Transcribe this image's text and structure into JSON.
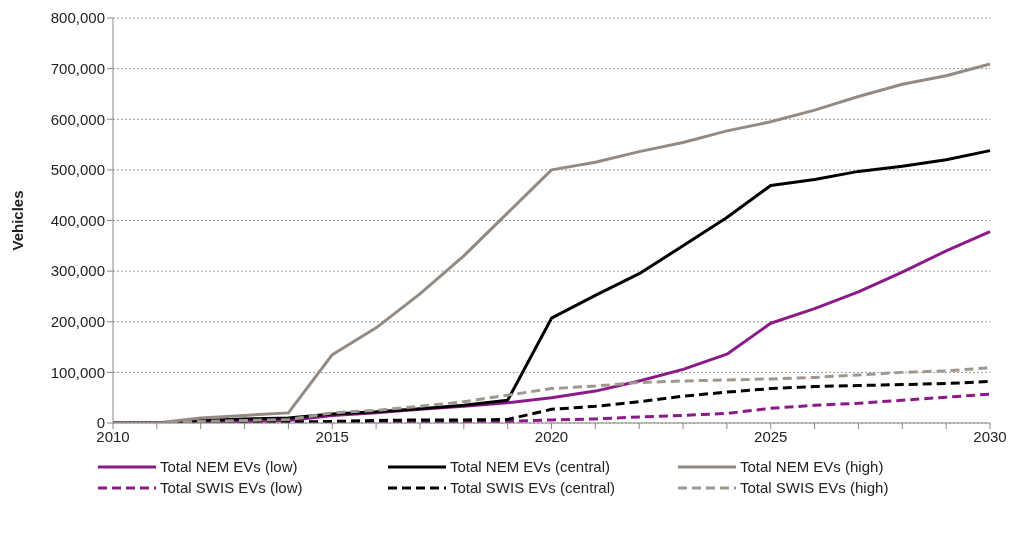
{
  "chart_data": {
    "type": "line",
    "ylabel": "Vehicles",
    "categories": [
      "2010",
      null,
      null,
      null,
      null,
      "2015",
      null,
      null,
      null,
      null,
      "2020",
      null,
      null,
      null,
      null,
      "2025",
      null,
      null,
      null,
      null,
      "2030"
    ],
    "series": [
      {
        "name": "Total NEM EVs (low)",
        "color": "#8b1a89",
        "line_style": "solid",
        "values": [
          0,
          0,
          2000,
          3000,
          5000,
          15000,
          20000,
          27000,
          33000,
          40000,
          50000,
          63000,
          83000,
          106000,
          136000,
          197000,
          226000,
          259000,
          298000,
          340000,
          378000
        ]
      },
      {
        "name": "Total NEM EVs (central)",
        "color": "#000000",
        "line_style": "solid",
        "values": [
          0,
          0,
          5000,
          8000,
          10000,
          18000,
          22000,
          28000,
          35000,
          45000,
          207000,
          252000,
          295000,
          350000,
          406000,
          469000,
          481000,
          497000,
          507000,
          520000,
          538000
        ]
      },
      {
        "name": "Total NEM EVs (high)",
        "color": "#948a84",
        "line_style": "solid",
        "values": [
          0,
          0,
          10000,
          15000,
          20000,
          135000,
          188000,
          255000,
          330000,
          415000,
          500000,
          515000,
          536000,
          554000,
          577000,
          595000,
          618000,
          645000,
          669000,
          686000,
          709000
        ]
      },
      {
        "name": "Total SWIS EVs (low)",
        "color": "#8b1a89",
        "line_style": "dashed",
        "values": [
          0,
          0,
          0,
          1000,
          1000,
          2000,
          2000,
          2000,
          3000,
          3000,
          6000,
          8000,
          12000,
          15000,
          19000,
          29000,
          35000,
          39000,
          45000,
          51000,
          57000
        ]
      },
      {
        "name": "Total SWIS EVs (central)",
        "color": "#000000",
        "line_style": "dashed",
        "values": [
          0,
          0,
          1000,
          2000,
          2000,
          3000,
          5000,
          6000,
          6000,
          7000,
          27000,
          33000,
          42000,
          53000,
          61000,
          68000,
          72000,
          74000,
          76000,
          78000,
          82000
        ]
      },
      {
        "name": "Total SWIS EVs (high)",
        "color": "#a0988f",
        "line_style": "dashed",
        "values": [
          0,
          0,
          3000,
          5000,
          7000,
          20000,
          25000,
          33000,
          42000,
          55000,
          68000,
          73000,
          80000,
          83000,
          85000,
          87000,
          90000,
          95000,
          100000,
          103000,
          109000
        ]
      }
    ],
    "ylim": [
      0,
      800000
    ],
    "yticks": [
      0,
      {
        "value": 100000,
        "label": "100,000"
      },
      {
        "value": 200000,
        "label": "200,000"
      },
      {
        "value": 300000,
        "label": "300,000"
      },
      {
        "value": 400000,
        "label": "400,000"
      },
      {
        "value": 500000,
        "label": "500,000"
      },
      {
        "value": 600000,
        "label": "600,000"
      },
      {
        "value": 700000,
        "label": "700,000"
      },
      {
        "value": 800000,
        "label": "800,000"
      }
    ],
    "grid": "y",
    "legend": "bottom",
    "marker": "none"
  }
}
